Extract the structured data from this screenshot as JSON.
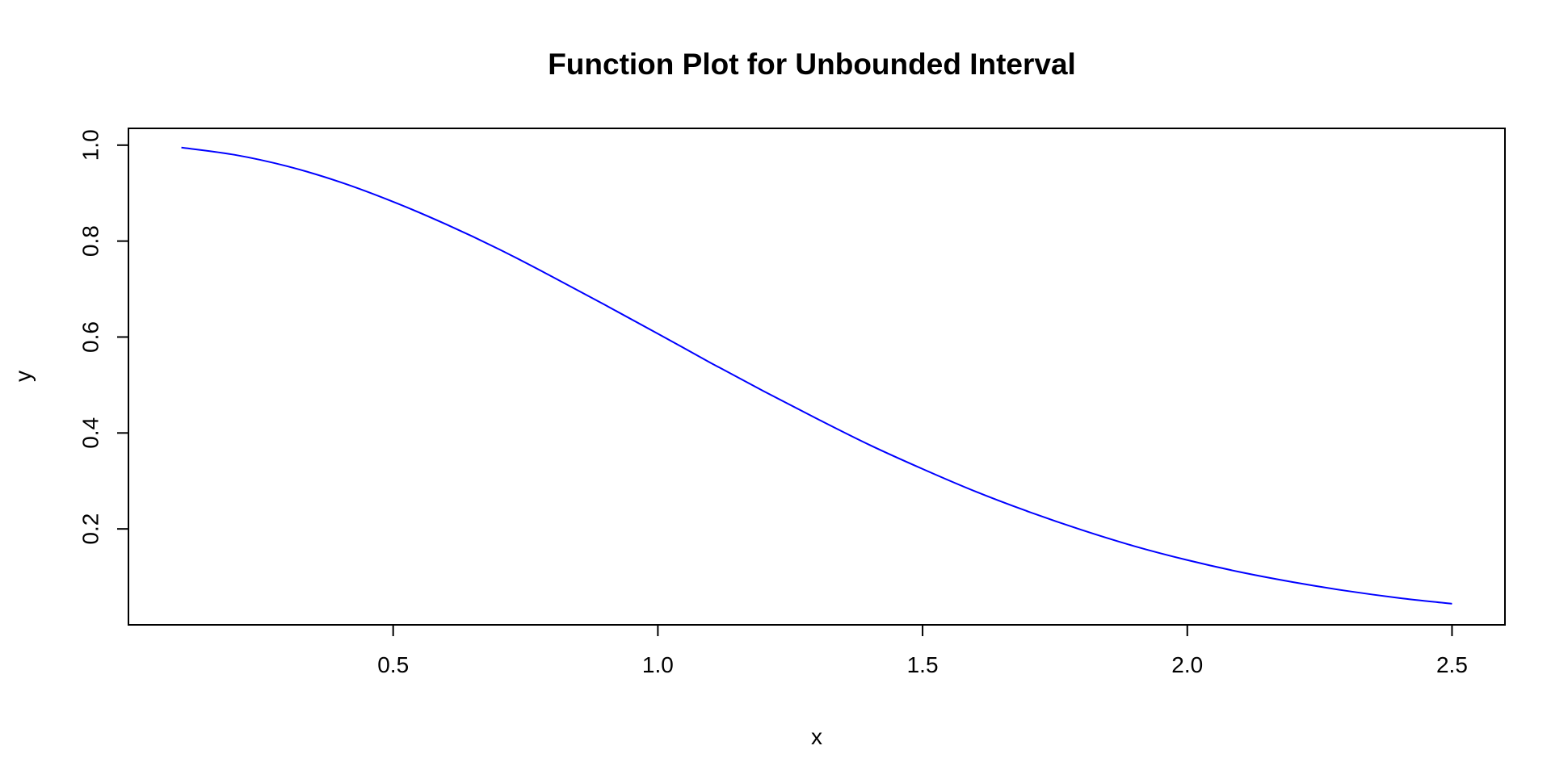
{
  "chart_data": {
    "type": "line",
    "title": "Function Plot for Unbounded Interval",
    "xlabel": "x",
    "ylabel": "y",
    "xlim": [
      0.0,
      2.6
    ],
    "ylim": [
      0.0,
      1.035
    ],
    "xticks": [
      0.5,
      1.0,
      1.5,
      2.0,
      2.5
    ],
    "xtick_labels": [
      "0.5",
      "1.0",
      "1.5",
      "2.0",
      "2.5"
    ],
    "yticks": [
      0.2,
      0.4,
      0.6,
      0.8,
      1.0
    ],
    "ytick_labels": [
      "0.2",
      "0.4",
      "0.6",
      "0.8",
      "1.0"
    ],
    "grid": false,
    "legend": "none",
    "series": [
      {
        "color": "#0000ff",
        "x": [
          0.1,
          0.2,
          0.3,
          0.4,
          0.5,
          0.6,
          0.7,
          0.8,
          0.9,
          1.0,
          1.1,
          1.2,
          1.3,
          1.4,
          1.5,
          1.6,
          1.7,
          1.8,
          1.9,
          2.0,
          2.1,
          2.2,
          2.3,
          2.4,
          2.5
        ],
        "y": [
          0.995,
          0.98,
          0.956,
          0.923,
          0.882,
          0.835,
          0.783,
          0.726,
          0.667,
          0.607,
          0.546,
          0.487,
          0.43,
          0.375,
          0.325,
          0.278,
          0.236,
          0.198,
          0.164,
          0.135,
          0.11,
          0.089,
          0.071,
          0.056,
          0.044
        ]
      }
    ]
  }
}
